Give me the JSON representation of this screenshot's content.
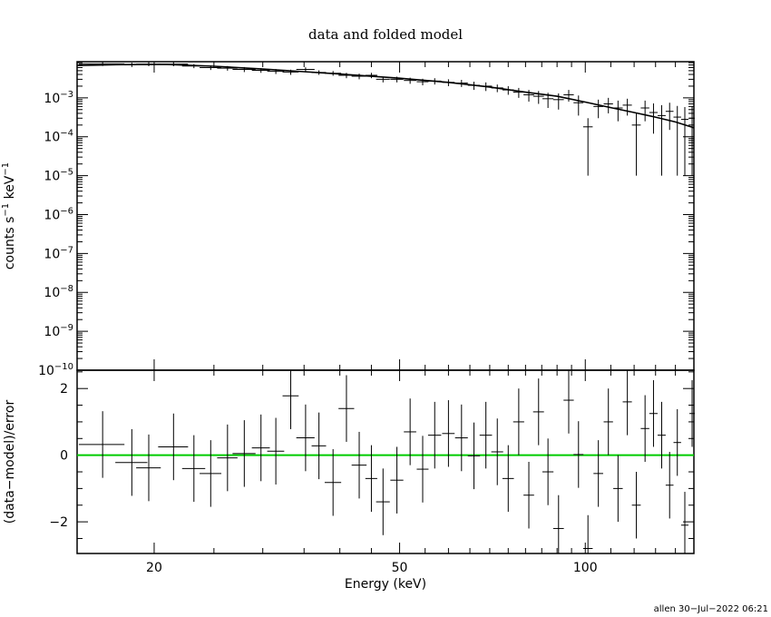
{
  "chart_data": [
    {
      "type": "scatter",
      "title": "data and folded model",
      "xlabel": "",
      "ylabel": "counts s⁻¹ keV⁻¹",
      "xscale": "log",
      "yscale": "log",
      "xlim": [
        15,
        150
      ],
      "ylim": [
        1e-10,
        0.0085
      ],
      "yticks": [
        {
          "base": "10",
          "exp": "−3"
        },
        {
          "base": "10",
          "exp": "−4"
        },
        {
          "base": "10",
          "exp": "−5"
        },
        {
          "base": "10",
          "exp": "−6"
        },
        {
          "base": "10",
          "exp": "−7"
        },
        {
          "base": "10",
          "exp": "−8"
        },
        {
          "base": "10",
          "exp": "−9"
        },
        {
          "base": "10",
          "exp": "−10"
        }
      ],
      "ylabel_parts": {
        "a": "counts s",
        "b": "−1",
        "c": " keV",
        "d": "−1"
      },
      "model": [
        [
          15,
          0.0068
        ],
        [
          17,
          0.0071
        ],
        [
          19,
          0.0072
        ],
        [
          21,
          0.0072
        ],
        [
          25,
          0.0065
        ],
        [
          30,
          0.0055
        ],
        [
          35,
          0.0047
        ],
        [
          40,
          0.0041
        ],
        [
          50,
          0.0032
        ],
        [
          60,
          0.0025
        ],
        [
          70,
          0.0019
        ],
        [
          80,
          0.0014
        ],
        [
          90,
          0.0011
        ],
        [
          100,
          0.00078
        ],
        [
          110,
          0.00056
        ],
        [
          120,
          0.00042
        ],
        [
          130,
          0.00032
        ],
        [
          140,
          0.00024
        ],
        [
          150,
          0.00017
        ]
      ],
      "data": [
        [
          16.5,
          1.4,
          0.0075,
          0.0009,
          0.0009
        ],
        [
          18.4,
          1.1,
          0.0071,
          0.0009,
          0.0009
        ],
        [
          19.6,
          0.9,
          0.0074,
          0.0009,
          0.0009
        ],
        [
          21.5,
          1.2,
          0.0074,
          0.0009,
          0.0009
        ],
        [
          23.2,
          1.0,
          0.0066,
          0.0008,
          0.0008
        ],
        [
          24.7,
          1.0,
          0.006,
          0.0008,
          0.0008
        ],
        [
          26.3,
          1.0,
          0.0058,
          0.0008,
          0.0008
        ],
        [
          28.0,
          1.2,
          0.0054,
          0.0008,
          0.0008
        ],
        [
          29.8,
          1.0,
          0.0051,
          0.0007,
          0.0007
        ],
        [
          31.5,
          1.0,
          0.0048,
          0.0007,
          0.0007
        ],
        [
          33.3,
          1.0,
          0.0046,
          0.0007,
          0.0007
        ],
        [
          35.2,
          1.2,
          0.0054,
          0.0007,
          0.0007
        ],
        [
          37.0,
          1.0,
          0.0045,
          0.0006,
          0.0006
        ],
        [
          39.0,
          1.2,
          0.0043,
          0.0006,
          0.0006
        ],
        [
          41.0,
          1.2,
          0.0038,
          0.0006,
          0.0006
        ],
        [
          43.0,
          1.2,
          0.0036,
          0.0006,
          0.0006
        ],
        [
          45.0,
          1.0,
          0.0038,
          0.0006,
          0.0006
        ],
        [
          47.0,
          1.2,
          0.003,
          0.0005,
          0.0005
        ],
        [
          49.5,
          1.2,
          0.003,
          0.0005,
          0.0005
        ],
        [
          52.0,
          1.2,
          0.0028,
          0.0005,
          0.0005
        ],
        [
          54.5,
          1.2,
          0.0026,
          0.0005,
          0.0005
        ],
        [
          57.0,
          1.4,
          0.0027,
          0.0005,
          0.0005
        ],
        [
          60.0,
          1.4,
          0.0025,
          0.0005,
          0.0005
        ],
        [
          63.0,
          1.5,
          0.0024,
          0.0005,
          0.0005
        ],
        [
          66.0,
          1.5,
          0.0021,
          0.0005,
          0.0005
        ],
        [
          69.0,
          1.6,
          0.002,
          0.0005,
          0.0005
        ],
        [
          72.0,
          1.6,
          0.0018,
          0.0004,
          0.0004
        ],
        [
          75.0,
          1.6,
          0.0016,
          0.0004,
          0.0004
        ],
        [
          78.0,
          1.6,
          0.0014,
          0.0004,
          0.0004
        ],
        [
          81.0,
          1.6,
          0.0012,
          0.0004,
          0.0004
        ],
        [
          84.0,
          1.7,
          0.0011,
          0.0004,
          0.0004
        ],
        [
          87.0,
          1.8,
          0.00095,
          0.0004,
          0.0004
        ],
        [
          90.5,
          1.8,
          0.0009,
          0.0004,
          0.0004
        ],
        [
          94.0,
          1.8,
          0.0012,
          0.0004,
          0.0004
        ],
        [
          97.5,
          1.8,
          0.00075,
          0.0004,
          0.0004
        ],
        [
          101.0,
          1.8,
          0.00018,
          0.00017,
          0.00012
        ],
        [
          105.0,
          1.9,
          0.0006,
          0.0003,
          0.0003
        ],
        [
          109.0,
          1.9,
          0.0007,
          0.0003,
          0.0003
        ],
        [
          113.0,
          2.0,
          0.00055,
          0.0003,
          0.0003
        ],
        [
          117.0,
          2.0,
          0.00065,
          0.0003,
          0.0003
        ],
        [
          121.0,
          2.0,
          0.0002,
          0.00019,
          0.0002
        ],
        [
          125.0,
          2.0,
          0.00055,
          0.0003,
          0.0003
        ],
        [
          129.0,
          2.0,
          0.00042,
          0.0003,
          0.0003
        ],
        [
          133.0,
          2.0,
          0.00035,
          0.00034,
          0.0003
        ],
        [
          137.0,
          2.0,
          0.00045,
          0.0003,
          0.0003
        ],
        [
          141.0,
          2.0,
          0.00032,
          0.00031,
          0.0003
        ],
        [
          145.0,
          2.0,
          0.00028,
          0.00027,
          0.0003
        ],
        [
          149.0,
          1.5,
          0.0003,
          0.00029,
          0.0003
        ]
      ]
    },
    {
      "type": "scatter",
      "xlabel": "Energy (keV)",
      "ylabel": "(data−model)/error",
      "xscale": "log",
      "xlim": [
        15,
        150
      ],
      "ylim": [
        -2.95,
        2.55
      ],
      "xticks": [
        "20",
        "50",
        "100"
      ],
      "yticks": [
        "2",
        "0",
        "−2"
      ],
      "reference_line": {
        "y": 0,
        "color": "#00cc00"
      },
      "data": [
        [
          16.5,
          1.4,
          0.32,
          1.0
        ],
        [
          18.4,
          1.1,
          -0.22,
          1.0
        ],
        [
          19.6,
          0.9,
          -0.38,
          1.0
        ],
        [
          21.5,
          1.2,
          0.25,
          1.0
        ],
        [
          23.2,
          1.0,
          -0.4,
          1.0
        ],
        [
          24.7,
          1.0,
          -0.55,
          1.0
        ],
        [
          26.3,
          1.0,
          -0.08,
          1.0
        ],
        [
          28.0,
          1.2,
          0.05,
          1.0
        ],
        [
          29.8,
          1.0,
          0.22,
          1.0
        ],
        [
          31.5,
          1.0,
          0.12,
          1.0
        ],
        [
          33.3,
          1.0,
          1.78,
          1.0
        ],
        [
          35.2,
          1.2,
          0.52,
          1.0
        ],
        [
          37.0,
          1.0,
          0.28,
          1.0
        ],
        [
          39.0,
          1.2,
          -0.82,
          1.0
        ],
        [
          41.0,
          1.2,
          1.4,
          1.0
        ],
        [
          43.0,
          1.2,
          -0.3,
          1.0
        ],
        [
          45.0,
          1.0,
          -0.7,
          1.0
        ],
        [
          47.0,
          1.2,
          -1.4,
          1.0
        ],
        [
          49.5,
          1.2,
          -0.75,
          1.0
        ],
        [
          52.0,
          1.2,
          0.7,
          1.0
        ],
        [
          54.5,
          1.2,
          -0.42,
          1.0
        ],
        [
          57.0,
          1.4,
          0.6,
          1.0
        ],
        [
          60.0,
          1.4,
          0.65,
          1.0
        ],
        [
          63.0,
          1.5,
          0.52,
          1.0
        ],
        [
          66.0,
          1.5,
          -0.02,
          1.0
        ],
        [
          69.0,
          1.6,
          0.6,
          1.0
        ],
        [
          72.0,
          1.6,
          0.1,
          1.0
        ],
        [
          75.0,
          1.6,
          -0.7,
          1.0
        ],
        [
          78.0,
          1.6,
          1.0,
          1.0
        ],
        [
          81.0,
          1.6,
          -1.2,
          1.0
        ],
        [
          84.0,
          1.7,
          1.3,
          1.0
        ],
        [
          87.0,
          1.8,
          -0.5,
          1.0
        ],
        [
          90.5,
          1.8,
          -2.2,
          1.0
        ],
        [
          94.0,
          1.8,
          1.65,
          1.0
        ],
        [
          97.5,
          1.8,
          0.02,
          1.0
        ],
        [
          101.0,
          1.8,
          -2.8,
          1.0
        ],
        [
          105.0,
          1.9,
          -0.55,
          1.0
        ],
        [
          109.0,
          1.9,
          1.0,
          1.0
        ],
        [
          113.0,
          2.0,
          -1.0,
          1.0
        ],
        [
          117.0,
          2.0,
          1.6,
          1.0
        ],
        [
          121.0,
          2.0,
          -1.5,
          1.0
        ],
        [
          125.0,
          2.0,
          0.8,
          1.0
        ],
        [
          129.0,
          2.0,
          1.25,
          1.0
        ],
        [
          133.0,
          2.0,
          0.6,
          1.0
        ],
        [
          137.0,
          2.0,
          -0.9,
          1.0
        ],
        [
          141.0,
          2.0,
          0.38,
          1.0
        ],
        [
          145.0,
          2.0,
          -2.1,
          1.0
        ],
        [
          149.0,
          1.5,
          1.25,
          1.0
        ]
      ]
    }
  ],
  "footer": "allen 30−Jul−2022 06:21",
  "colors": {
    "axes": "#000000",
    "reference_line": "#00cc00",
    "background": "#ffffff"
  }
}
